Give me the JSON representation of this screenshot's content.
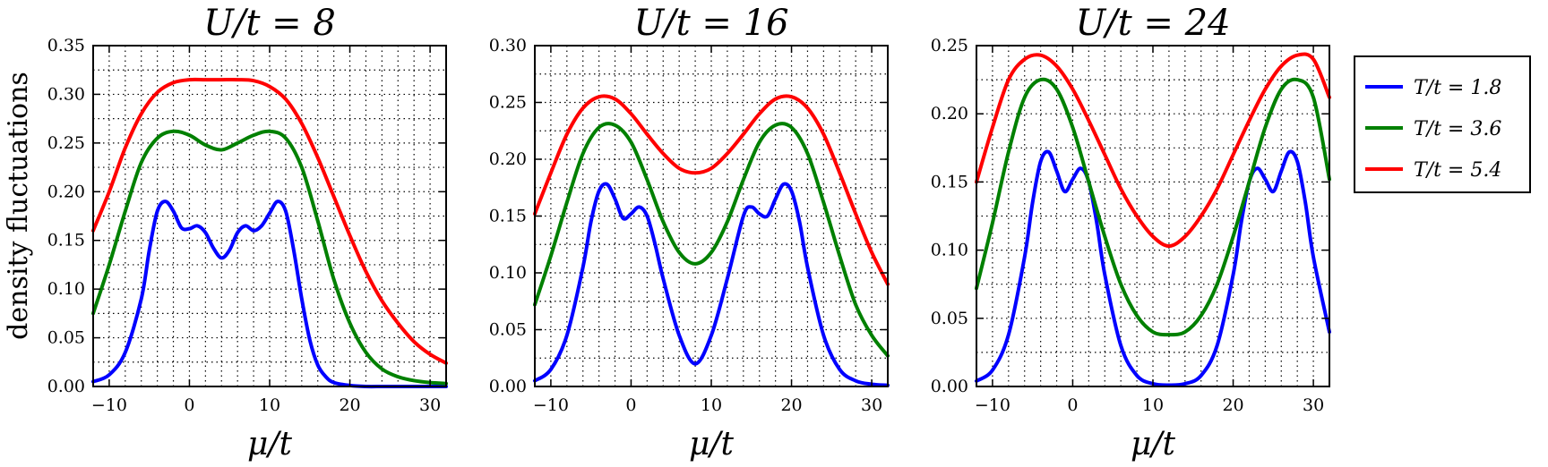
{
  "figure": {
    "ylabel": "density fluctuations"
  },
  "legend": {
    "entries": [
      {
        "label": "T/t = 1.8",
        "color": "#0000ff"
      },
      {
        "label": "T/t = 3.6",
        "color": "#008000"
      },
      {
        "label": "T/t = 5.4",
        "color": "#ff0000"
      }
    ]
  },
  "chart_data": [
    {
      "type": "line",
      "title": "U/t = 8",
      "xlabel": "μ/t",
      "ylabel": "density fluctuations",
      "xlim": [
        -12,
        32
      ],
      "ylim": [
        0,
        0.35
      ],
      "xticks": [
        -10,
        0,
        10,
        20,
        30
      ],
      "yticks": [
        0.0,
        0.05,
        0.1,
        0.15,
        0.2,
        0.25,
        0.3,
        0.35
      ],
      "grid": true,
      "series": [
        {
          "name": "T/t = 1.8",
          "color": "#0000ff",
          "x": [
            -12,
            -10,
            -8,
            -6,
            -5,
            -4,
            -3,
            -2,
            -1,
            0,
            1,
            2,
            3,
            4,
            5,
            6,
            7,
            8,
            9,
            10,
            11,
            12,
            13,
            14,
            15,
            16,
            17,
            18,
            20,
            22,
            24,
            26,
            28,
            30,
            32
          ],
          "y": [
            0.005,
            0.012,
            0.035,
            0.09,
            0.14,
            0.18,
            0.19,
            0.18,
            0.163,
            0.162,
            0.165,
            0.158,
            0.142,
            0.132,
            0.14,
            0.158,
            0.165,
            0.16,
            0.165,
            0.178,
            0.19,
            0.18,
            0.14,
            0.09,
            0.048,
            0.022,
            0.01,
            0.004,
            0.001,
            0.0,
            0.0,
            0.0,
            0.0,
            0.0,
            0.0
          ]
        },
        {
          "name": "T/t = 3.6",
          "color": "#008000",
          "x": [
            -12,
            -10,
            -8,
            -6,
            -4,
            -2,
            0,
            2,
            4,
            6,
            8,
            10,
            12,
            14,
            16,
            18,
            20,
            22,
            24,
            26,
            28,
            30,
            32
          ],
          "y": [
            0.075,
            0.125,
            0.18,
            0.23,
            0.255,
            0.262,
            0.258,
            0.248,
            0.243,
            0.25,
            0.258,
            0.262,
            0.255,
            0.225,
            0.17,
            0.11,
            0.065,
            0.035,
            0.018,
            0.01,
            0.006,
            0.004,
            0.003
          ]
        },
        {
          "name": "T/t = 5.4",
          "color": "#ff0000",
          "x": [
            -12,
            -10,
            -8,
            -6,
            -4,
            -2,
            0,
            2,
            4,
            6,
            8,
            10,
            12,
            14,
            16,
            18,
            20,
            22,
            24,
            26,
            28,
            30,
            32
          ],
          "y": [
            0.16,
            0.2,
            0.245,
            0.28,
            0.302,
            0.312,
            0.315,
            0.315,
            0.315,
            0.315,
            0.314,
            0.308,
            0.295,
            0.27,
            0.235,
            0.195,
            0.155,
            0.118,
            0.088,
            0.065,
            0.046,
            0.033,
            0.024
          ]
        }
      ]
    },
    {
      "type": "line",
      "title": "U/t = 16",
      "xlabel": "μ/t",
      "ylabel": "",
      "xlim": [
        -12,
        32
      ],
      "ylim": [
        0,
        0.3
      ],
      "xticks": [
        -10,
        0,
        10,
        20,
        30
      ],
      "yticks": [
        0.0,
        0.05,
        0.1,
        0.15,
        0.2,
        0.25,
        0.3
      ],
      "grid": true,
      "series": [
        {
          "name": "T/t = 1.8",
          "color": "#0000ff",
          "x": [
            -12,
            -10,
            -8,
            -6,
            -5,
            -4,
            -3,
            -2,
            -1,
            0,
            1,
            2,
            3,
            4,
            6,
            8,
            10,
            12,
            14,
            15,
            16,
            17,
            18,
            19,
            20,
            21,
            22,
            24,
            26,
            28,
            30,
            32
          ],
          "y": [
            0.005,
            0.015,
            0.045,
            0.105,
            0.145,
            0.172,
            0.178,
            0.165,
            0.148,
            0.152,
            0.158,
            0.15,
            0.125,
            0.095,
            0.045,
            0.02,
            0.045,
            0.095,
            0.15,
            0.158,
            0.152,
            0.15,
            0.165,
            0.178,
            0.172,
            0.145,
            0.105,
            0.045,
            0.015,
            0.005,
            0.002,
            0.001
          ]
        },
        {
          "name": "T/t = 3.6",
          "color": "#008000",
          "x": [
            -12,
            -10,
            -8,
            -6,
            -4,
            -2,
            0,
            2,
            4,
            6,
            8,
            10,
            12,
            14,
            16,
            18,
            20,
            22,
            24,
            26,
            28,
            30,
            32
          ],
          "y": [
            0.072,
            0.115,
            0.162,
            0.205,
            0.228,
            0.23,
            0.215,
            0.182,
            0.145,
            0.118,
            0.108,
            0.118,
            0.145,
            0.182,
            0.215,
            0.23,
            0.228,
            0.205,
            0.162,
            0.115,
            0.072,
            0.045,
            0.027
          ]
        },
        {
          "name": "T/t = 5.4",
          "color": "#ff0000",
          "x": [
            -12,
            -10,
            -8,
            -6,
            -4,
            -2,
            0,
            2,
            4,
            6,
            8,
            10,
            12,
            14,
            16,
            18,
            20,
            22,
            24,
            26,
            28,
            30,
            32
          ],
          "y": [
            0.152,
            0.188,
            0.222,
            0.245,
            0.255,
            0.253,
            0.24,
            0.222,
            0.205,
            0.192,
            0.188,
            0.192,
            0.205,
            0.222,
            0.24,
            0.253,
            0.255,
            0.245,
            0.222,
            0.188,
            0.152,
            0.118,
            0.09
          ]
        }
      ]
    },
    {
      "type": "line",
      "title": "U/t = 24",
      "xlabel": "μ/t",
      "ylabel": "",
      "xlim": [
        -12,
        32
      ],
      "ylim": [
        0,
        0.25
      ],
      "xticks": [
        -10,
        0,
        10,
        20,
        30
      ],
      "yticks": [
        0.0,
        0.05,
        0.1,
        0.15,
        0.2,
        0.25
      ],
      "grid": true,
      "series": [
        {
          "name": "T/t = 1.8",
          "color": "#0000ff",
          "x": [
            -12,
            -10,
            -8,
            -6,
            -5,
            -4,
            -3,
            -2,
            -1,
            0,
            1,
            2,
            3,
            4,
            6,
            8,
            10,
            12,
            14,
            16,
            18,
            20,
            21,
            22,
            23,
            24,
            25,
            26,
            27,
            28,
            29,
            30,
            32
          ],
          "y": [
            0.004,
            0.012,
            0.038,
            0.095,
            0.135,
            0.165,
            0.172,
            0.158,
            0.143,
            0.152,
            0.16,
            0.15,
            0.12,
            0.082,
            0.03,
            0.008,
            0.002,
            0.001,
            0.002,
            0.008,
            0.03,
            0.082,
            0.12,
            0.15,
            0.16,
            0.152,
            0.143,
            0.158,
            0.172,
            0.165,
            0.135,
            0.095,
            0.04
          ]
        },
        {
          "name": "T/t = 3.6",
          "color": "#008000",
          "x": [
            -12,
            -10,
            -8,
            -6,
            -4,
            -2,
            0,
            2,
            4,
            6,
            8,
            10,
            12,
            14,
            16,
            18,
            20,
            22,
            24,
            26,
            28,
            30,
            32
          ],
          "y": [
            0.072,
            0.12,
            0.172,
            0.212,
            0.225,
            0.218,
            0.19,
            0.15,
            0.11,
            0.075,
            0.052,
            0.04,
            0.038,
            0.04,
            0.052,
            0.075,
            0.11,
            0.15,
            0.19,
            0.218,
            0.225,
            0.212,
            0.152
          ]
        },
        {
          "name": "T/t = 5.4",
          "color": "#ff0000",
          "x": [
            -12,
            -10,
            -8,
            -6,
            -4,
            -2,
            0,
            2,
            4,
            6,
            8,
            10,
            12,
            14,
            16,
            18,
            20,
            22,
            24,
            26,
            28,
            30,
            32
          ],
          "y": [
            0.15,
            0.19,
            0.225,
            0.24,
            0.243,
            0.235,
            0.218,
            0.195,
            0.17,
            0.145,
            0.125,
            0.11,
            0.103,
            0.11,
            0.125,
            0.145,
            0.17,
            0.195,
            0.218,
            0.235,
            0.243,
            0.24,
            0.212
          ]
        }
      ]
    }
  ]
}
